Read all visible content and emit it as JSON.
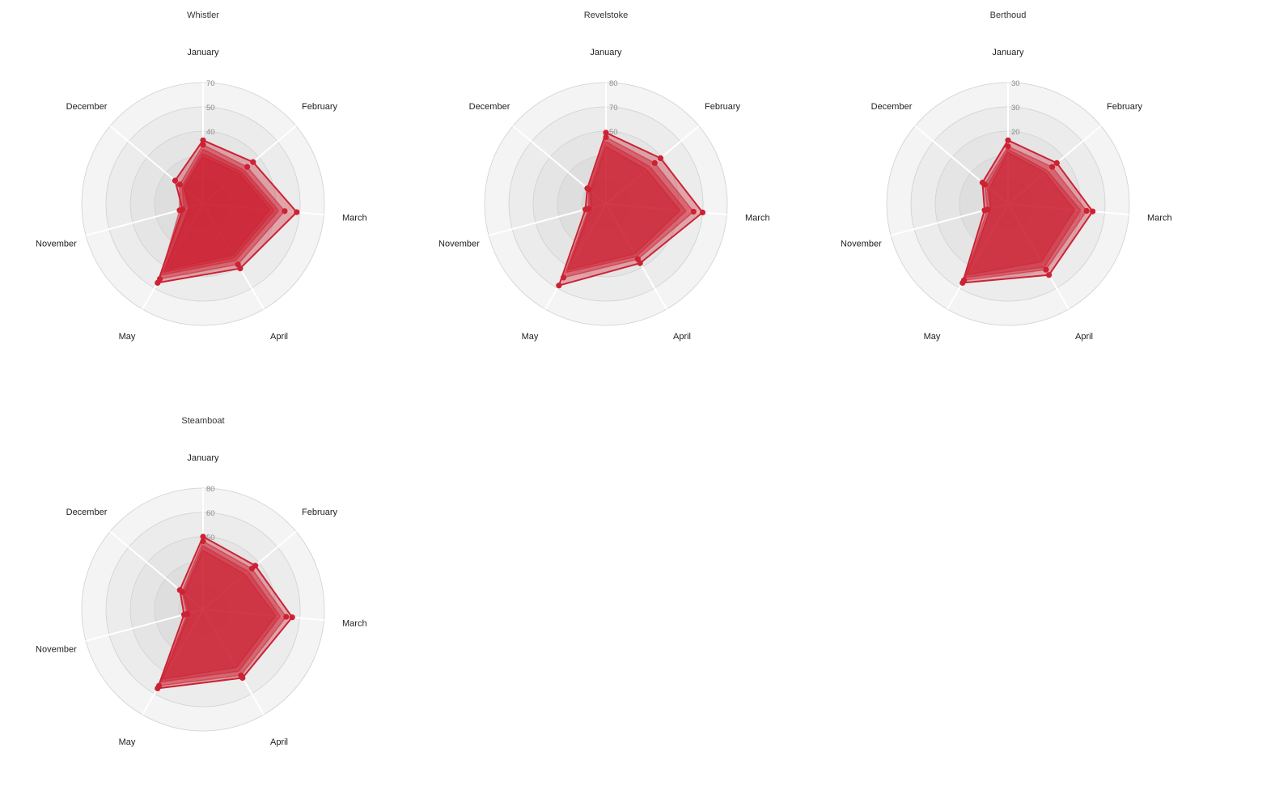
{
  "chart_data": [
    {
      "type": "radar",
      "title": "Whistler",
      "categories": [
        "January",
        "February",
        "March",
        "April",
        "May",
        "November",
        "December"
      ],
      "radial_ticks": [
        "70",
        "50",
        "40"
      ],
      "rmax": 80,
      "fill_color": "#cc2233",
      "series": [
        {
          "values": [
            42,
            43,
            62,
            49,
            60,
            14,
            24
          ]
        },
        {
          "values": [
            39,
            38,
            54,
            46,
            57,
            16,
            20
          ]
        },
        {
          "values": [
            36,
            35,
            50,
            43,
            54,
            13,
            18
          ]
        },
        {
          "values": [
            33,
            33,
            47,
            41,
            52,
            10,
            17
          ]
        },
        {
          "values": [
            31,
            31,
            44,
            39,
            50,
            9,
            16
          ]
        }
      ]
    },
    {
      "type": "radar",
      "title": "Revelstoke",
      "categories": [
        "January",
        "February",
        "March",
        "April",
        "May",
        "November",
        "December"
      ],
      "radial_ticks": [
        "80",
        "70",
        "50"
      ],
      "rmax": 80,
      "fill_color": "#cc2233",
      "series": [
        {
          "values": [
            47,
            47,
            64,
            45,
            62,
            14,
            16
          ]
        },
        {
          "values": [
            44,
            42,
            58,
            42,
            56,
            12,
            15
          ]
        },
        {
          "values": [
            41,
            38,
            53,
            40,
            52,
            11,
            14
          ]
        },
        {
          "values": [
            38,
            35,
            49,
            38,
            50,
            10,
            13
          ]
        }
      ]
    },
    {
      "type": "radar",
      "title": "Berthoud",
      "categories": [
        "January",
        "February",
        "March",
        "April",
        "May",
        "November",
        "December"
      ],
      "radial_ticks": [
        "30",
        "30",
        "20"
      ],
      "rmax": 40,
      "fill_color": "#cc2233",
      "series": [
        {
          "values": [
            21,
            21,
            28,
            27,
            30,
            8,
            11
          ]
        },
        {
          "values": [
            19,
            19,
            26,
            25,
            29,
            7,
            10
          ]
        },
        {
          "values": [
            18,
            17,
            24,
            24,
            28,
            6,
            9
          ]
        },
        {
          "values": [
            17,
            16,
            22,
            22,
            27,
            6,
            8
          ]
        }
      ]
    },
    {
      "type": "radar",
      "title": "Steamboat",
      "categories": [
        "January",
        "February",
        "March",
        "April",
        "May",
        "November",
        "December"
      ],
      "radial_ticks": [
        "80",
        "60",
        "50"
      ],
      "rmax": 80,
      "fill_color": "#cc2233",
      "series": [
        {
          "values": [
            48,
            45,
            59,
            52,
            60,
            13,
            20
          ]
        },
        {
          "values": [
            45,
            42,
            55,
            50,
            58,
            11,
            18
          ]
        },
        {
          "values": [
            42,
            39,
            51,
            47,
            55,
            10,
            17
          ]
        },
        {
          "values": [
            39,
            36,
            48,
            44,
            53,
            9,
            16
          ]
        }
      ]
    }
  ]
}
